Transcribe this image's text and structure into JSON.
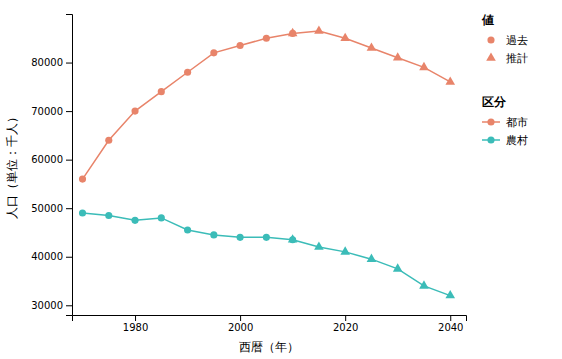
{
  "chart_data": {
    "type": "line",
    "xlabel": "西暦（年）",
    "ylabel": "人口（単位：千人）",
    "xlim": [
      1968,
      2043
    ],
    "xticks": [
      1980,
      2000,
      2020,
      2040
    ],
    "ylim": [
      28000,
      90000
    ],
    "yticks": [
      30000,
      40000,
      50000,
      60000,
      70000,
      80000
    ],
    "grid": false,
    "series": [
      {
        "color": "#E8846A",
        "marker": "circle",
        "line_style": "solid",
        "x": [
          1970,
          1975,
          1980,
          1985,
          1990,
          1995,
          2000,
          2005,
          2010
        ],
        "values": [
          56000,
          64000,
          70000,
          74000,
          78000,
          82000,
          83500,
          85000,
          86000
        ]
      },
      {
        "color": "#E8846A",
        "marker": "triangle",
        "line_style": "solid",
        "x": [
          2010,
          2015,
          2020,
          2025,
          2030,
          2035,
          2040
        ],
        "values": [
          86000,
          86500,
          85000,
          83000,
          81000,
          79000,
          76000
        ]
      },
      {
        "color": "#3BBCB8",
        "marker": "circle",
        "line_style": "solid",
        "x": [
          1970,
          1975,
          1980,
          1985,
          1990,
          1995,
          2000,
          2005,
          2010
        ],
        "values": [
          49000,
          48500,
          47500,
          48000,
          45500,
          44500,
          44000,
          44000,
          43500
        ]
      },
      {
        "color": "#3BBCB8",
        "marker": "triangle",
        "line_style": "solid",
        "x": [
          2010,
          2015,
          2020,
          2025,
          2030,
          2035,
          2040
        ],
        "values": [
          43500,
          42000,
          41000,
          39500,
          37500,
          34000,
          32000
        ]
      }
    ],
    "legends": [
      {
        "title": "値",
        "entries": [
          {
            "name": "過去",
            "color": "#E8846A",
            "marker": "circle"
          },
          {
            "name": "推計",
            "color": "#E8846A",
            "marker": "triangle"
          }
        ]
      },
      {
        "title": "区分",
        "entries": [
          {
            "name": "都市",
            "color": "#E8846A",
            "marker": "circle",
            "line_style": "solid"
          },
          {
            "name": "農村",
            "color": "#3BBCB8",
            "marker": "circle",
            "line_style": "solid"
          }
        ]
      }
    ]
  }
}
